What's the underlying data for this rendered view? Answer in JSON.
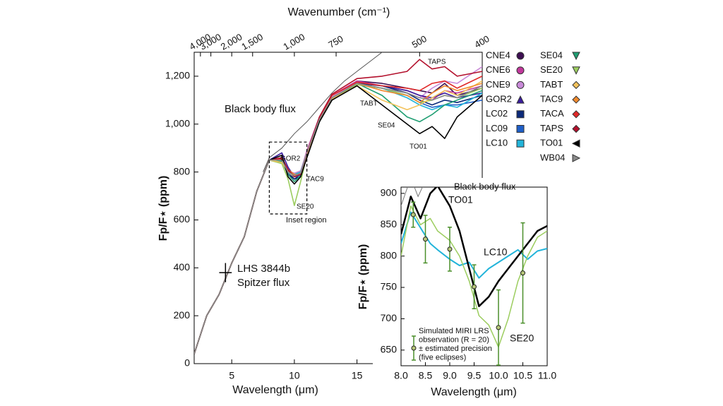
{
  "chart_data": [
    {
      "type": "line",
      "x_label": "Wavelength (μm)",
      "y_label": "Fp/F⋆ (ppm)",
      "x2_label": "Wavenumber (cm⁻¹)",
      "xlim": [
        2,
        25
      ],
      "ylim": [
        0,
        1300
      ],
      "xticks": [
        5,
        10,
        15
      ],
      "yticks": [
        0,
        200,
        400,
        600,
        800,
        {
          "value": 1000,
          "label": "1,000"
        },
        {
          "value": 1200,
          "label": "1,200"
        }
      ],
      "x2ticks": [
        {
          "value": 4000,
          "label": "4,000"
        },
        {
          "value": 3000,
          "label": "3,000"
        },
        {
          "value": 2000,
          "label": "2,000"
        },
        {
          "value": 1500,
          "label": "1,500"
        },
        {
          "value": 1000,
          "label": "1,000"
        },
        750,
        500,
        400
      ],
      "x": [
        2,
        3,
        4,
        5,
        6,
        7,
        8,
        9,
        9.5,
        10,
        10.5,
        11,
        12,
        13,
        15,
        17,
        19,
        20,
        21,
        22,
        23,
        25
      ],
      "series": [
        {
          "name": "CNE4",
          "color": "#3d0f52",
          "marker": "circle",
          "values": [
            40,
            200,
            290,
            420,
            530,
            720,
            850,
            850,
            790,
            770,
            790,
            880,
            1020,
            1110,
            1180,
            1170,
            1150,
            1140,
            1130,
            1170,
            1120,
            1150
          ]
        },
        {
          "name": "CNE6",
          "color": "#c2389c",
          "marker": "circle",
          "values": [
            40,
            200,
            290,
            420,
            530,
            720,
            850,
            860,
            810,
            790,
            800,
            890,
            1030,
            1120,
            1180,
            1160,
            1140,
            1120,
            1100,
            1140,
            1130,
            1160
          ]
        },
        {
          "name": "CNE9",
          "color": "#c98ad9",
          "marker": "circle",
          "values": [
            40,
            200,
            290,
            420,
            530,
            720,
            850,
            845,
            805,
            795,
            805,
            885,
            1025,
            1115,
            1170,
            1150,
            1130,
            1110,
            1150,
            1180,
            1170,
            1240
          ]
        },
        {
          "name": "GOR2",
          "color": "#3a1d9e",
          "marker": "tri-up",
          "values": [
            40,
            200,
            290,
            420,
            530,
            720,
            850,
            880,
            820,
            780,
            790,
            870,
            1010,
            1100,
            1170,
            1160,
            1140,
            1120,
            1110,
            1130,
            1110,
            1130
          ]
        },
        {
          "name": "LC02",
          "color": "#0c2a7a",
          "marker": "square",
          "values": [
            40,
            200,
            290,
            420,
            530,
            720,
            850,
            850,
            800,
            770,
            780,
            870,
            1010,
            1100,
            1170,
            1160,
            1130,
            1100,
            1080,
            1100,
            1090,
            1120
          ]
        },
        {
          "name": "LC09",
          "color": "#1f5fc8",
          "marker": "square",
          "values": [
            40,
            200,
            290,
            420,
            530,
            720,
            850,
            845,
            795,
            780,
            785,
            875,
            1015,
            1105,
            1165,
            1150,
            1120,
            1090,
            1070,
            1080,
            1080,
            1100
          ]
        },
        {
          "name": "LC10",
          "color": "#22b4da",
          "marker": "square",
          "values": [
            40,
            200,
            290,
            420,
            530,
            720,
            850,
            840,
            800,
            790,
            800,
            880,
            1020,
            1110,
            1165,
            1150,
            1110,
            1080,
            1060,
            1080,
            1070,
            1130
          ]
        },
        {
          "name": "SE04",
          "color": "#1f9e72",
          "marker": "tri-down",
          "values": [
            40,
            200,
            290,
            420,
            530,
            720,
            850,
            845,
            790,
            760,
            785,
            875,
            1015,
            1105,
            1170,
            1120,
            1030,
            1010,
            1040,
            1080,
            1100,
            1140
          ]
        },
        {
          "name": "SE20",
          "color": "#9ccd5f",
          "marker": "tri-down",
          "values": [
            40,
            200,
            290,
            420,
            530,
            720,
            850,
            835,
            770,
            660,
            760,
            870,
            1010,
            1100,
            1165,
            1150,
            1120,
            1090,
            1100,
            1120,
            1110,
            1150
          ]
        },
        {
          "name": "TABT",
          "color": "#f3c35c",
          "marker": "diamond",
          "values": [
            40,
            200,
            290,
            420,
            530,
            720,
            850,
            840,
            800,
            780,
            795,
            880,
            1020,
            1105,
            1160,
            1100,
            1060,
            1080,
            1110,
            1140,
            1120,
            1180
          ]
        },
        {
          "name": "TAC9",
          "color": "#f08a2e",
          "marker": "diamond",
          "values": [
            40,
            200,
            290,
            420,
            530,
            720,
            850,
            850,
            810,
            790,
            790,
            870,
            1015,
            1110,
            1170,
            1140,
            1120,
            1090,
            1130,
            1160,
            1140,
            1170
          ]
        },
        {
          "name": "TACA",
          "color": "#e02828",
          "marker": "diamond",
          "values": [
            40,
            200,
            290,
            420,
            530,
            720,
            850,
            855,
            805,
            785,
            795,
            880,
            1025,
            1120,
            1175,
            1160,
            1150,
            1140,
            1170,
            1180,
            1150,
            1200
          ]
        },
        {
          "name": "TAPS",
          "color": "#b3102c",
          "marker": "diamond",
          "values": [
            40,
            200,
            290,
            420,
            530,
            720,
            850,
            860,
            810,
            780,
            790,
            880,
            1030,
            1125,
            1190,
            1200,
            1220,
            1270,
            1230,
            1240,
            1200,
            1220
          ]
        },
        {
          "name": "TO01",
          "color": "#000000",
          "marker": "tri-left",
          "values": [
            40,
            200,
            290,
            420,
            530,
            720,
            850,
            870,
            780,
            750,
            780,
            860,
            1010,
            1100,
            1160,
            1080,
            1000,
            960,
            990,
            940,
            1030,
            1120
          ]
        },
        {
          "name": "WB04",
          "color": "#8a8a8a",
          "marker": "tri-right",
          "values": [
            40,
            200,
            290,
            420,
            530,
            720,
            850,
            850,
            800,
            785,
            795,
            880,
            1020,
            1110,
            1170,
            1150,
            1130,
            1110,
            1100,
            1120,
            1110,
            1160
          ]
        }
      ],
      "black_body": {
        "name": "Black body flux",
        "color": "#555555",
        "x": [
          7.5,
          8,
          9,
          10,
          11,
          12,
          13,
          14,
          15,
          16,
          17
        ],
        "values": [
          800,
          860,
          900,
          960,
          1010,
          1070,
          1130,
          1180,
          1220,
          1260,
          1300
        ]
      },
      "spitzer": {
        "label": [
          "LHS 3844b",
          "Spitzer flux"
        ],
        "x": 4.5,
        "xerr": 0.5,
        "y": 380,
        "yerr": 40
      },
      "inset_label": "Inset region"
    },
    {
      "type": "line",
      "x_label": "Wavelength (μm)",
      "y_label": "Fp/F⋆ (ppm)",
      "xlim": [
        8,
        11
      ],
      "ylim": [
        625,
        910
      ],
      "xticks": [
        {
          "value": 8,
          "label": "8.0"
        },
        8.5,
        {
          "value": 9,
          "label": "9.0"
        },
        9.5,
        {
          "value": 10,
          "label": "10.0"
        },
        10.5,
        {
          "value": 11,
          "label": "11.0"
        }
      ],
      "yticks": [
        650,
        700,
        750,
        800,
        850,
        900
      ],
      "x": [
        8,
        8.2,
        8.4,
        8.6,
        8.75,
        9,
        9.2,
        9.4,
        9.6,
        9.8,
        10,
        10.2,
        10.4,
        10.6,
        10.8,
        11
      ],
      "series": [
        {
          "name": "LC10",
          "color": "#22b4da",
          "width": 2,
          "values": [
            820,
            870,
            845,
            820,
            810,
            795,
            785,
            790,
            765,
            780,
            790,
            800,
            810,
            795,
            808,
            812
          ]
        },
        {
          "name": "SE20",
          "color": "#9ccd5f",
          "width": 1.5,
          "values": [
            800,
            880,
            850,
            860,
            840,
            825,
            800,
            760,
            705,
            690,
            655,
            700,
            760,
            800,
            830,
            840
          ]
        },
        {
          "name": "TO01",
          "color": "#000000",
          "width": 2.5,
          "values": [
            835,
            895,
            860,
            900,
            912,
            880,
            840,
            780,
            720,
            735,
            760,
            780,
            800,
            820,
            840,
            848
          ]
        }
      ],
      "black_body": {
        "name": "Black body flux",
        "color": "#777777",
        "x": [
          8,
          8.2,
          8.35,
          8.5,
          8.65,
          8.8
        ],
        "values": [
          880,
          925,
          895,
          920,
          930,
          940
        ]
      },
      "observation": {
        "label": [
          "Simulated MIRI LRS",
          "observation (R = 20)",
          "± estimated precision",
          "(five eclipses)"
        ],
        "color": "#4a8f2a",
        "x": [
          8.25,
          8.5,
          9,
          9.5,
          10,
          10.5
        ],
        "values": [
          866,
          827,
          811,
          751,
          686,
          773
        ],
        "errors": [
          20,
          38,
          35,
          35,
          60,
          80
        ]
      }
    }
  ]
}
